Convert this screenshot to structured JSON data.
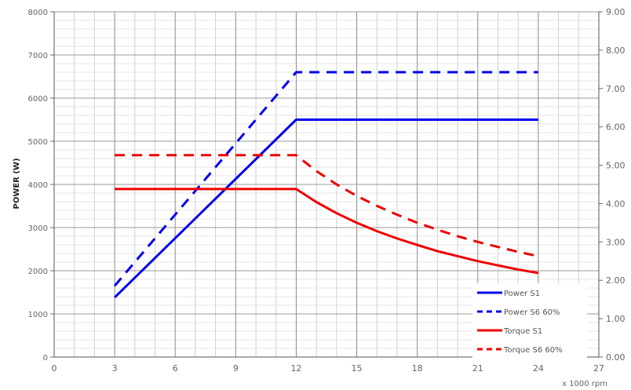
{
  "chart_data": {
    "type": "line",
    "title": "",
    "xlabel": "x 1000 rpm",
    "ylabel": "POWER (W)",
    "y2label": "",
    "xlim": [
      0,
      27
    ],
    "ylim": [
      0,
      8000
    ],
    "y2lim": [
      0,
      9
    ],
    "x_ticks": [
      0,
      3,
      6,
      9,
      12,
      15,
      18,
      21,
      24,
      27
    ],
    "x_minor_step": 1,
    "y_ticks": [
      0,
      1000,
      2000,
      3000,
      4000,
      5000,
      6000,
      7000,
      8000
    ],
    "y_minor_step": 200,
    "y2_ticks": [
      "0.00",
      "1.00",
      "2.00",
      "3.00",
      "4.00",
      "5.00",
      "6.00",
      "7.00",
      "8.00",
      "9.00"
    ],
    "grid": true,
    "legend_position": "bottom-right",
    "series": [
      {
        "name": "Power S1",
        "axis": "left",
        "color": "#0000ee",
        "dash": "solid",
        "x": [
          3,
          12,
          24
        ],
        "y": [
          1380,
          5500,
          5500
        ]
      },
      {
        "name": "Power S6 60%",
        "axis": "left",
        "color": "#0000ee",
        "dash": "dashed",
        "x": [
          3,
          12,
          24
        ],
        "y": [
          1650,
          6600,
          6600
        ]
      },
      {
        "name": "Torque S1",
        "axis": "right",
        "color": "#ee0000",
        "dash": "solid",
        "x": [
          3,
          12,
          13,
          14,
          15,
          16,
          17,
          18,
          19,
          20,
          21,
          22,
          23,
          24
        ],
        "y": [
          4.38,
          4.38,
          4.04,
          3.75,
          3.5,
          3.28,
          3.09,
          2.92,
          2.76,
          2.63,
          2.5,
          2.39,
          2.28,
          2.19
        ]
      },
      {
        "name": "Torque S6 60%",
        "axis": "right",
        "color": "#ee0000",
        "dash": "dashed",
        "x": [
          3,
          12,
          13,
          14,
          15,
          16,
          17,
          18,
          19,
          20,
          21,
          22,
          23,
          24
        ],
        "y": [
          5.26,
          5.26,
          4.85,
          4.5,
          4.2,
          3.94,
          3.71,
          3.5,
          3.32,
          3.15,
          3.0,
          2.87,
          2.74,
          2.63
        ]
      }
    ]
  }
}
